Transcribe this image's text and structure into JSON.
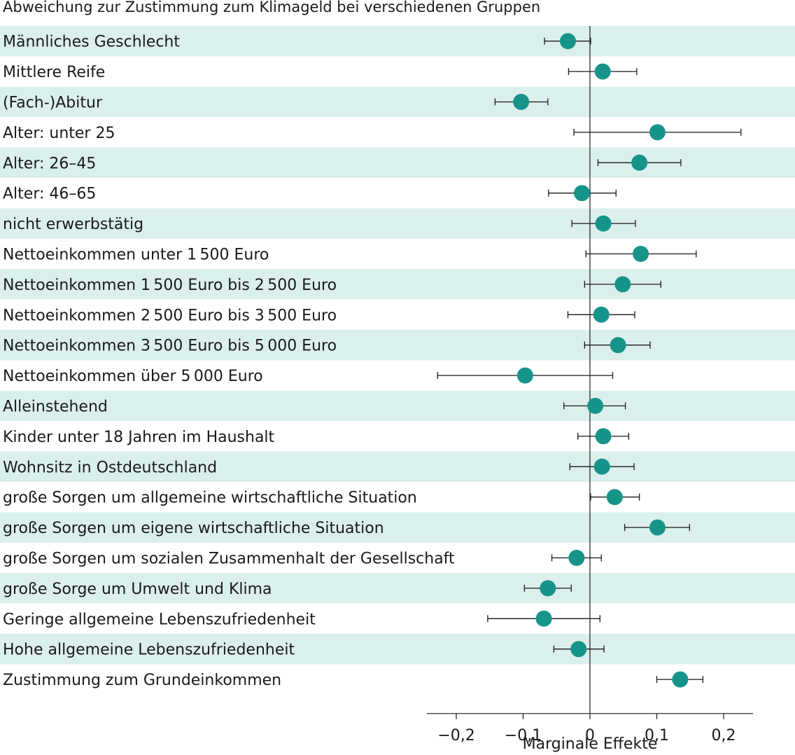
{
  "chart_data": {
    "type": "scatter",
    "title": "Abweichung zur Zustimmung zum Klimageld bei verschiedenen Gruppen",
    "xlabel": "Marginale Effekte",
    "ylabel": "",
    "xlim": [
      -0.245,
      0.245
    ],
    "xticks": [
      -0.2,
      -0.1,
      0,
      0.1,
      0.2
    ],
    "xtick_labels": [
      "−0,2",
      "−0,1",
      "0",
      "0,1",
      "0,2"
    ],
    "row_band_color": "#dbefec",
    "marker_color": "#16948a",
    "error_bar_color": "#1a1a1a",
    "rows": [
      {
        "label": "Männliches Geschlecht",
        "estimate": -0.033,
        "lower": -0.068,
        "upper": 0.001,
        "shaded": true
      },
      {
        "label": "Mittlere Reife",
        "estimate": 0.019,
        "lower": -0.032,
        "upper": 0.07,
        "shaded": false
      },
      {
        "label": "(Fach-)Abitur",
        "estimate": -0.103,
        "lower": -0.142,
        "upper": -0.063,
        "shaded": true
      },
      {
        "label": "Alter: unter 25",
        "estimate": 0.101,
        "lower": -0.024,
        "upper": 0.226,
        "shaded": false
      },
      {
        "label": "Alter: 26–45",
        "estimate": 0.074,
        "lower": 0.012,
        "upper": 0.136,
        "shaded": true
      },
      {
        "label": "Alter: 46–65",
        "estimate": -0.012,
        "lower": -0.062,
        "upper": 0.039,
        "shaded": false
      },
      {
        "label": "nicht erwerbstätig",
        "estimate": 0.02,
        "lower": -0.027,
        "upper": 0.068,
        "shaded": true
      },
      {
        "label": "Nettoeinkommen unter 1 500 Euro",
        "estimate": 0.076,
        "lower": -0.006,
        "upper": 0.159,
        "shaded": false
      },
      {
        "label": "Nettoeinkommen 1 500 Euro bis 2 500 Euro",
        "estimate": 0.049,
        "lower": -0.008,
        "upper": 0.106,
        "shaded": true
      },
      {
        "label": "Nettoeinkommen 2 500 Euro bis 3 500 Euro",
        "estimate": 0.017,
        "lower": -0.033,
        "upper": 0.067,
        "shaded": false
      },
      {
        "label": "Nettoeinkommen 3 500 Euro bis 5 000 Euro",
        "estimate": 0.042,
        "lower": -0.008,
        "upper": 0.09,
        "shaded": true
      },
      {
        "label": "Nettoeinkommen über 5 000 Euro",
        "estimate": -0.097,
        "lower": -0.228,
        "upper": 0.034,
        "shaded": false
      },
      {
        "label": "Alleinstehend",
        "estimate": 0.008,
        "lower": -0.039,
        "upper": 0.053,
        "shaded": true
      },
      {
        "label": "Kinder unter 18 Jahren im Haushalt",
        "estimate": 0.02,
        "lower": -0.018,
        "upper": 0.058,
        "shaded": false
      },
      {
        "label": "Wohnsitz in Ostdeutschland",
        "estimate": 0.018,
        "lower": -0.03,
        "upper": 0.066,
        "shaded": true
      },
      {
        "label": "große Sorgen um allgemeine wirtschaftliche Situation",
        "estimate": 0.037,
        "lower": 0.001,
        "upper": 0.074,
        "shaded": false
      },
      {
        "label": "große Sorgen um eigene wirtschaftliche Situation",
        "estimate": 0.101,
        "lower": 0.052,
        "upper": 0.149,
        "shaded": true
      },
      {
        "label": "große Sorgen um sozialen Zusammenhalt der Gesellschaft",
        "estimate": -0.02,
        "lower": -0.057,
        "upper": 0.017,
        "shaded": false
      },
      {
        "label": "große Sorge um Umwelt und Klima",
        "estimate": -0.063,
        "lower": -0.098,
        "upper": -0.028,
        "shaded": true
      },
      {
        "label": "Geringe allgemeine Lebenszufriedenheit",
        "estimate": -0.069,
        "lower": -0.153,
        "upper": 0.015,
        "shaded": false
      },
      {
        "label": "Hohe allgemeine Lebenszufriedenheit",
        "estimate": -0.017,
        "lower": -0.054,
        "upper": 0.021,
        "shaded": true
      },
      {
        "label": "Zustimmung zum Grundeinkommen",
        "estimate": 0.135,
        "lower": 0.1,
        "upper": 0.169,
        "shaded": false
      }
    ]
  }
}
